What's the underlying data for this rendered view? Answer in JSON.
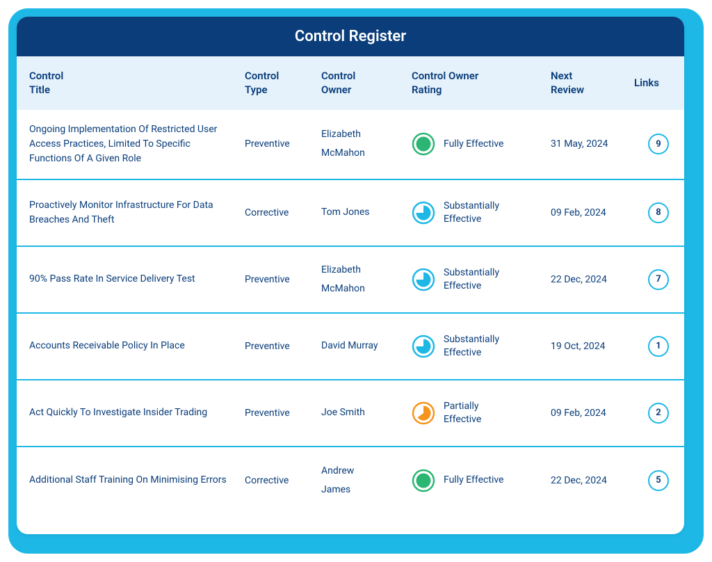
{
  "title": "Control Register",
  "colors": {
    "outer_bg": "#1eb8e6",
    "title_bg": "#0a3d7a",
    "header_bg": "#e5f2fb",
    "text": "#0a3d7a",
    "divider": "#1eb8e6",
    "link_border": "#1eb8e6",
    "rating_full": "#2bb673",
    "rating_sub": "#1eb8e6",
    "rating_partial": "#f7941d"
  },
  "columns": {
    "title": "Control\nTitle",
    "type": "Control\nType",
    "owner": "Control\nOwner",
    "rating": "Control Owner\nRating",
    "review": "Next\nReview",
    "links": "Links"
  },
  "rating_styles": {
    "full": {
      "ring": "#2bb673",
      "fill": "#2bb673",
      "fraction": 1.0
    },
    "sub": {
      "ring": "#1eb8e6",
      "fill": "#1eb8e6",
      "fraction": 0.75
    },
    "partial": {
      "ring": "#f7941d",
      "fill": "#f7941d",
      "fraction": 0.65
    }
  },
  "rows": [
    {
      "title": "Ongoing Implementation Of Restricted User Access Practices, Limited To Specific Functions Of A Given Role",
      "type": "Preventive",
      "owner": "Elizabeth\nMcMahon",
      "rating_key": "full",
      "rating_label": "Fully Effective",
      "review": "31 May, 2024",
      "links": "9"
    },
    {
      "title": "Proactively Monitor Infrastructure For Data Breaches And Theft",
      "type": "Corrective",
      "owner": "Tom Jones",
      "rating_key": "sub",
      "rating_label": "Substantially\nEffective",
      "review": "09 Feb, 2024",
      "links": "8"
    },
    {
      "title": "90% Pass Rate In Service Delivery Test",
      "type": "Preventive",
      "owner": "Elizabeth\nMcMahon",
      "rating_key": "sub",
      "rating_label": "Substantially\nEffective",
      "review": "22 Dec, 2024",
      "links": "7"
    },
    {
      "title": "Accounts Receivable Policy In Place",
      "type": "Preventive",
      "owner": "David Murray",
      "rating_key": "sub",
      "rating_label": "Substantially\nEffective",
      "review": "19 Oct, 2024",
      "links": "1"
    },
    {
      "title": "Act Quickly To Investigate Insider Trading",
      "type": "Preventive",
      "owner": "Joe Smith",
      "rating_key": "partial",
      "rating_label": "Partially\nEffective",
      "review": "09 Feb, 2024",
      "links": "2"
    },
    {
      "title": "Additional Staff Training On Minimising Errors",
      "type": "Corrective",
      "owner": "Andrew\nJames",
      "rating_key": "full",
      "rating_label": "Fully Effective",
      "review": "22 Dec, 2024",
      "links": "5"
    }
  ]
}
